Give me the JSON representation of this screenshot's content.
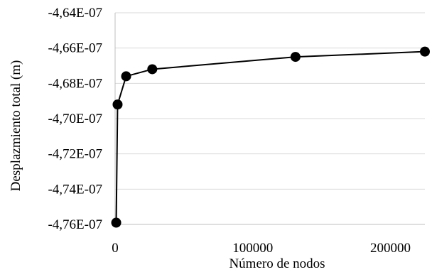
{
  "chart_data": {
    "type": "scatter",
    "title": "",
    "xlabel": "Número de nodos",
    "ylabel": "Desplazmiento total (m)",
    "xlim": [
      0,
      225000
    ],
    "ylim": [
      -4.76e-07,
      -4.64e-07
    ],
    "x_ticks": [
      0,
      100000,
      200000
    ],
    "x_tick_labels": [
      "0",
      "100000",
      "200000"
    ],
    "y_ticks": [
      -4.64e-07,
      -4.66e-07,
      -4.68e-07,
      -4.7e-07,
      -4.72e-07,
      -4.74e-07,
      -4.76e-07
    ],
    "y_tick_labels": [
      "-4,64E-07",
      "-4,66E-07",
      "-4,68E-07",
      "-4,70E-07",
      "-4,72E-07",
      "-4,74E-07",
      "-4,76E-07"
    ],
    "grid": true,
    "legend": "none",
    "series": [
      {
        "x": [
          800,
          1800,
          8000,
          27000,
          131000,
          225000
        ],
        "y": [
          -4.759e-07,
          -4.692e-07,
          -4.676e-07,
          -4.672e-07,
          -4.665e-07,
          -4.662e-07
        ],
        "color": "#000000"
      }
    ]
  }
}
